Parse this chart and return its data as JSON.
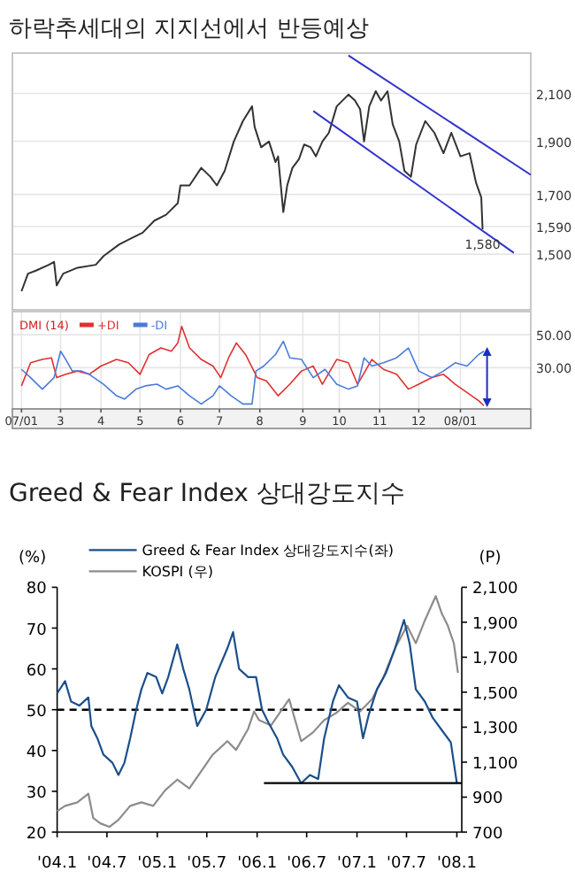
{
  "chart_data": [
    {
      "type": "line",
      "title": "하락추세대의 지지선에서 반등예상",
      "log": "y",
      "grid": "y",
      "tick_labels": "y",
      "xlim": [
        "2007-01-23",
        "2008-02-25"
      ],
      "ylim": [
        1335,
        2285
      ],
      "yticks": [
        {
          "value": 1500,
          "label": "1,500"
        },
        {
          "value": 1590,
          "label": "1,590"
        },
        {
          "value": 1700,
          "label": "1,700"
        },
        {
          "value": 1900,
          "label": "1,900"
        },
        {
          "value": 2100,
          "label": "2,100"
        }
      ],
      "annotations": [
        {
          "text": "1,580",
          "x": "2008-01-19",
          "y": 1580
        }
      ],
      "series": [
        {
          "color": "#333333",
          "x": [
            "2007-01-30",
            "2007-02-04",
            "2007-02-10",
            "2007-02-20",
            "2007-02-24",
            "2007-02-26",
            "2007-03-03",
            "2007-03-14",
            "2007-03-28",
            "2007-04-03",
            "2007-04-15",
            "2007-04-24",
            "2007-05-03",
            "2007-05-12",
            "2007-05-21",
            "2007-05-30",
            "2007-06-01",
            "2007-06-08",
            "2007-06-17",
            "2007-06-24",
            "2007-06-29",
            "2007-07-05",
            "2007-07-12",
            "2007-07-19",
            "2007-07-26",
            "2007-07-28",
            "2007-08-02",
            "2007-08-08",
            "2007-08-13",
            "2007-08-15",
            "2007-08-19",
            "2007-08-22",
            "2007-08-26",
            "2007-08-31",
            "2007-09-04",
            "2007-09-09",
            "2007-09-13",
            "2007-09-18",
            "2007-09-23",
            "2007-09-29",
            "2007-10-08",
            "2007-10-13",
            "2007-10-17",
            "2007-10-20",
            "2007-10-24",
            "2007-10-29",
            "2007-11-02",
            "2007-11-07",
            "2007-11-11",
            "2007-11-16",
            "2007-11-20",
            "2007-11-25",
            "2007-11-29",
            "2007-12-06",
            "2007-12-13",
            "2007-12-20",
            "2007-12-26",
            "2008-01-02",
            "2008-01-09",
            "2008-01-14",
            "2008-01-18",
            "2008-01-19"
          ],
          "values": [
            1388,
            1440,
            1449,
            1467,
            1476,
            1405,
            1440,
            1458,
            1467,
            1494,
            1531,
            1550,
            1569,
            1609,
            1629,
            1669,
            1732,
            1732,
            1797,
            1764,
            1732,
            1786,
            1899,
            1982,
            2044,
            1958,
            1876,
            1899,
            1819,
            1841,
            1638,
            1732,
            1797,
            1830,
            1887,
            1876,
            1841,
            1899,
            1934,
            2044,
            2095,
            2069,
            2031,
            1899,
            2044,
            2110,
            2069,
            2110,
            1969,
            1899,
            1786,
            1764,
            1887,
            1982,
            1934,
            1853,
            1934,
            1841,
            1853,
            1742,
            1689,
            1580
          ]
        },
        {
          "type": "line",
          "color": "#3333cc",
          "x": [
            "2007-10-08",
            "2008-02-25"
          ],
          "values": [
            2274,
            1771
          ]
        },
        {
          "type": "line",
          "color": "#3333cc",
          "x": [
            "2007-09-11",
            "2008-02-12"
          ],
          "values": [
            2024,
            1504
          ]
        }
      ]
    },
    {
      "type": "line",
      "legend_title": "DMI (14)",
      "legend": "top left",
      "grid": true,
      "xlim": [
        "2007-01-23",
        "2008-02-25"
      ],
      "xticks": [
        {
          "value": "2007-01-30",
          "label": "07/01"
        },
        {
          "value": "2007-03-01",
          "label": "3"
        },
        {
          "value": "2007-04-01",
          "label": "4"
        },
        {
          "value": "2007-05-01",
          "label": "5"
        },
        {
          "value": "2007-06-01",
          "label": "6"
        },
        {
          "value": "2007-07-01",
          "label": "7"
        },
        {
          "value": "2007-08-01",
          "label": "8"
        },
        {
          "value": "2007-09-03",
          "label": "9"
        },
        {
          "value": "2007-10-01",
          "label": "10"
        },
        {
          "value": "2007-11-01",
          "label": "11"
        },
        {
          "value": "2007-12-01",
          "label": "12"
        },
        {
          "value": "2008-01-02",
          "label": "08/01"
        }
      ],
      "ylim": [
        5,
        64
      ],
      "yticks": [
        {
          "value": 30,
          "label": "30.00"
        },
        {
          "value": 50,
          "label": "50.00"
        }
      ],
      "series": [
        {
          "name": "+DI",
          "color": "#e03030",
          "x": [
            "2007-01-30",
            "2007-02-06",
            "2007-02-15",
            "2007-02-22",
            "2007-02-26",
            "2007-03-05",
            "2007-03-14",
            "2007-03-23",
            "2007-04-01",
            "2007-04-13",
            "2007-04-22",
            "2007-05-01",
            "2007-05-08",
            "2007-05-17",
            "2007-05-25",
            "2007-05-30",
            "2007-06-02",
            "2007-06-08",
            "2007-06-17",
            "2007-06-26",
            "2007-07-02",
            "2007-07-08",
            "2007-07-14",
            "2007-07-21",
            "2007-07-30",
            "2007-08-06",
            "2007-08-15",
            "2007-08-24",
            "2007-09-02",
            "2007-09-11",
            "2007-09-18",
            "2007-09-29",
            "2007-10-08",
            "2007-10-15",
            "2007-10-26",
            "2007-11-04",
            "2007-11-14",
            "2007-11-23",
            "2007-12-01",
            "2007-12-11",
            "2007-12-20",
            "2007-12-29",
            "2008-01-07",
            "2008-01-16",
            "2008-01-20"
          ],
          "values": [
            19,
            33,
            35,
            36,
            24,
            26,
            28,
            26,
            31,
            35,
            33,
            26,
            38,
            42,
            40,
            45,
            55,
            42,
            35,
            31,
            24,
            36,
            45,
            38,
            24,
            22,
            13,
            20,
            28,
            31,
            20,
            35,
            33,
            20,
            35,
            29,
            26,
            17,
            20,
            24,
            26,
            20,
            15,
            10,
            7
          ]
        },
        {
          "name": "-DI",
          "color": "#4a7bd8",
          "x": [
            "2007-01-30",
            "2007-02-06",
            "2007-02-15",
            "2007-02-24",
            "2007-03-01",
            "2007-03-05",
            "2007-03-10",
            "2007-03-17",
            "2007-03-23",
            "2007-04-03",
            "2007-04-13",
            "2007-04-19",
            "2007-04-28",
            "2007-05-05",
            "2007-05-14",
            "2007-05-21",
            "2007-05-30",
            "2007-06-08",
            "2007-06-17",
            "2007-06-26",
            "2007-07-01",
            "2007-07-10",
            "2007-07-19",
            "2007-07-26",
            "2007-07-29",
            "2007-08-04",
            "2007-08-13",
            "2007-08-19",
            "2007-08-24",
            "2007-09-02",
            "2007-09-11",
            "2007-09-20",
            "2007-09-29",
            "2007-10-08",
            "2007-10-15",
            "2007-10-20",
            "2007-10-26",
            "2007-11-04",
            "2007-11-14",
            "2007-11-23",
            "2007-12-01",
            "2007-12-11",
            "2007-12-20",
            "2007-12-29",
            "2008-01-07",
            "2008-01-16",
            "2008-01-20"
          ],
          "values": [
            29,
            24,
            17,
            24,
            40,
            35,
            28,
            28,
            26,
            20,
            13,
            11,
            17,
            19,
            20,
            17,
            19,
            13,
            8,
            13,
            19,
            13,
            8,
            8,
            28,
            31,
            38,
            46,
            36,
            35,
            24,
            29,
            20,
            17,
            19,
            36,
            31,
            33,
            36,
            42,
            28,
            24,
            28,
            33,
            31,
            38,
            40
          ]
        }
      ]
    },
    {
      "type": "line",
      "title": "Greed & Fear Index 상대강도지수",
      "ylabel": "(%)",
      "y2label": "(P)",
      "legend": "top left",
      "xlim": [
        "2004-01-01",
        "2008-01-19"
      ],
      "xticks": [
        {
          "value": "2004-01-01",
          "label": "'04.1"
        },
        {
          "value": "2004-07-01",
          "label": "'04.7"
        },
        {
          "value": "2005-01-01",
          "label": "'05.1"
        },
        {
          "value": "2005-07-01",
          "label": "'05.7"
        },
        {
          "value": "2006-01-01",
          "label": "'06.1"
        },
        {
          "value": "2006-07-01",
          "label": "'06.7"
        },
        {
          "value": "2007-01-01",
          "label": "'07.1"
        },
        {
          "value": "2007-07-01",
          "label": "'07.7"
        },
        {
          "value": "2008-01-01",
          "label": "'08.1"
        }
      ],
      "ylim": [
        20,
        80
      ],
      "yticks": [
        20,
        30,
        40,
        50,
        60,
        70,
        80
      ],
      "y2lim": [
        700,
        2100
      ],
      "y2ticks": [
        700,
        900,
        {
          "value": 1100,
          "label": "1,100"
        },
        {
          "value": 1300,
          "label": "1,300"
        },
        {
          "value": 1500,
          "label": "1,500"
        },
        {
          "value": 1700,
          "label": "1,700"
        },
        {
          "value": 1900,
          "label": "1,900"
        },
        {
          "value": 2100,
          "label": "2,100"
        }
      ],
      "ref_lines": [
        {
          "axis": "y",
          "value": 50,
          "line_style": "dashed",
          "color": "#000000"
        }
      ],
      "series": [
        {
          "name": "Greed & Fear Index 상대강도지수(좌)",
          "color": "#1a4f8a",
          "x": [
            "2004-01-01",
            "2004-01-30",
            "2004-02-21",
            "2004-03-22",
            "2004-04-24",
            "2004-05-05",
            "2004-05-27",
            "2004-06-18",
            "2004-07-21",
            "2004-08-12",
            "2004-09-03",
            "2004-09-24",
            "2004-10-16",
            "2004-11-04",
            "2004-11-26",
            "2004-12-28",
            "2005-01-19",
            "2005-02-10",
            "2005-03-15",
            "2005-04-06",
            "2005-04-28",
            "2005-05-27",
            "2005-06-29",
            "2005-08-01",
            "2005-09-14",
            "2005-10-05",
            "2005-10-27",
            "2005-11-29",
            "2005-12-28",
            "2006-01-19",
            "2006-02-10",
            "2006-03-15",
            "2006-04-06",
            "2006-05-09",
            "2006-06-11",
            "2006-07-13",
            "2006-08-12",
            "2006-09-03",
            "2006-10-05",
            "2006-10-27",
            "2006-11-29",
            "2007-01-01",
            "2007-01-23",
            "2007-02-14",
            "2007-03-15",
            "2007-04-17",
            "2007-05-20",
            "2007-06-22",
            "2007-07-13",
            "2007-08-04",
            "2007-09-06",
            "2007-10-05",
            "2007-11-07",
            "2007-12-10",
            "2008-01-01"
          ],
          "values": [
            54,
            57,
            52,
            51,
            53,
            46,
            43,
            39,
            37,
            34,
            37,
            43,
            50,
            55,
            59,
            58,
            54,
            58,
            66,
            60,
            55,
            46,
            50,
            58,
            65,
            69,
            60,
            58,
            58,
            50,
            47,
            43,
            39,
            36,
            32,
            34,
            33,
            43,
            52,
            56,
            53,
            52,
            43,
            49,
            55,
            59,
            65,
            72,
            66,
            55,
            52,
            48,
            45,
            42,
            32
          ]
        },
        {
          "name": "KOSPI (우)",
          "axis": "y2",
          "color": "#8c8c8c",
          "x": [
            "2004-01-01",
            "2004-01-30",
            "2004-03-15",
            "2004-04-24",
            "2004-05-12",
            "2004-06-07",
            "2004-07-10",
            "2004-08-12",
            "2004-09-24",
            "2004-11-04",
            "2004-12-17",
            "2005-01-30",
            "2005-03-15",
            "2005-04-28",
            "2005-06-07",
            "2005-07-21",
            "2005-09-14",
            "2005-10-16",
            "2005-11-29",
            "2005-12-21",
            "2006-01-08",
            "2006-02-21",
            "2006-04-06",
            "2006-04-28",
            "2006-05-20",
            "2006-06-11",
            "2006-07-24",
            "2006-09-03",
            "2006-10-16",
            "2006-11-29",
            "2007-01-12",
            "2007-02-25",
            "2007-04-06",
            "2007-05-20",
            "2007-07-03",
            "2007-08-04",
            "2007-09-06",
            "2007-10-16",
            "2007-11-07",
            "2007-11-29",
            "2007-12-21",
            "2008-01-05"
          ],
          "values": [
            820,
            850,
            870,
            920,
            780,
            750,
            730,
            770,
            850,
            870,
            850,
            940,
            1000,
            950,
            1040,
            1140,
            1220,
            1170,
            1290,
            1390,
            1340,
            1310,
            1410,
            1460,
            1340,
            1220,
            1270,
            1340,
            1380,
            1440,
            1390,
            1460,
            1580,
            1750,
            1880,
            1780,
            1910,
            2050,
            1950,
            1880,
            1780,
            1610
          ]
        },
        {
          "type": "line",
          "color": "#000000",
          "x": [
            "2006-01-26",
            "2008-01-19"
          ],
          "values": [
            32,
            32
          ]
        }
      ]
    }
  ]
}
